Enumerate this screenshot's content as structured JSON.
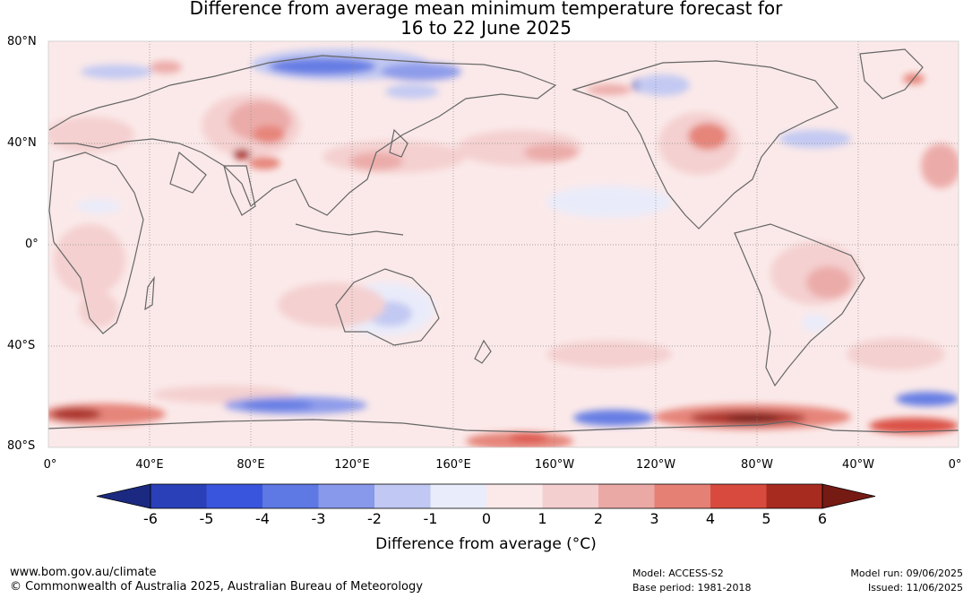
{
  "title_line1": "Difference from average mean minimum temperature forecast for",
  "title_line2": "16 to 22 June 2025",
  "lat_labels": [
    "80°N",
    "40°N",
    "0°",
    "40°S",
    "80°S"
  ],
  "lon_labels": [
    "0°",
    "40°E",
    "80°E",
    "120°E",
    "160°E",
    "160°W",
    "120°W",
    "80°W",
    "40°W",
    "0°"
  ],
  "colorbar": {
    "ticks": [
      "-6",
      "-5",
      "-4",
      "-3",
      "-2",
      "-1",
      "0",
      "1",
      "2",
      "3",
      "4",
      "5",
      "6"
    ],
    "label": "Difference from average (°C)",
    "colors": [
      "#1b2a80",
      "#2a40b8",
      "#3a55dd",
      "#5e78e4",
      "#8898eb",
      "#c0c8f3",
      "#e9ecfb",
      "#fbe9e9",
      "#f4cfcf",
      "#eba9a6",
      "#e58075",
      "#d94a3e",
      "#a82b20",
      "#761a14"
    ]
  },
  "footer": {
    "url": "www.bom.gov.au/climate",
    "copyright": "© Commonwealth of Australia 2025, Australian Bureau of Meteorology",
    "model": "Model: ACCESS-S2",
    "base_period": "Base period: 1981-2018",
    "model_run": "Model run: 09/06/2025",
    "issued": "Issued: 11/06/2025"
  },
  "anomaly_regions": [
    {
      "lon": 100,
      "lat": 70,
      "value": -3,
      "color": "#5e78e4"
    },
    {
      "lon": 88,
      "lat": 72,
      "value": -2,
      "color": "#8898eb"
    },
    {
      "lon": 72,
      "lat": 45,
      "value": 2,
      "color": "#eba9a6"
    },
    {
      "lon": 73,
      "lat": 37,
      "value": 5,
      "color": "#a82b20"
    },
    {
      "lon": 140,
      "lat": 36,
      "value": 2,
      "color": "#f4cfcf"
    },
    {
      "lon": 170,
      "lat": 37,
      "value": 1,
      "color": "#f4cfcf"
    },
    {
      "lon": 40,
      "lat": 45,
      "value": 2,
      "color": "#f4cfcf"
    },
    {
      "lon": -107,
      "lat": 42,
      "value": 3,
      "color": "#e58075"
    },
    {
      "lon": -70,
      "lat": 48,
      "value": -1,
      "color": "#c0c8f3"
    },
    {
      "lon": -55,
      "lat": -10,
      "value": 2,
      "color": "#f4cfcf"
    },
    {
      "lon": 130,
      "lat": -25,
      "value": -2,
      "color": "#8898eb"
    },
    {
      "lon": 20,
      "lat": -5,
      "value": 1,
      "color": "#f4cfcf"
    },
    {
      "lon": -125,
      "lat": 60,
      "value": -3,
      "color": "#3a55dd"
    },
    {
      "lon": 10,
      "lat": -67,
      "value": 5,
      "color": "#a82b20"
    },
    {
      "lon": -75,
      "lat": -69,
      "value": 6,
      "color": "#761a14"
    },
    {
      "lon": -55,
      "lat": -66,
      "value": 3,
      "color": "#e58075"
    },
    {
      "lon": -15,
      "lat": -70,
      "value": 4,
      "color": "#d94a3e"
    },
    {
      "lon": 90,
      "lat": -63,
      "value": -3,
      "color": "#5e78e4"
    },
    {
      "lon": -172,
      "lat": -69,
      "value": -3,
      "color": "#5e78e4"
    },
    {
      "lon": -10,
      "lat": -64,
      "value": -3,
      "color": "#5e78e4"
    },
    {
      "lon": 175,
      "lat": -77,
      "value": 3,
      "color": "#e58075"
    }
  ]
}
